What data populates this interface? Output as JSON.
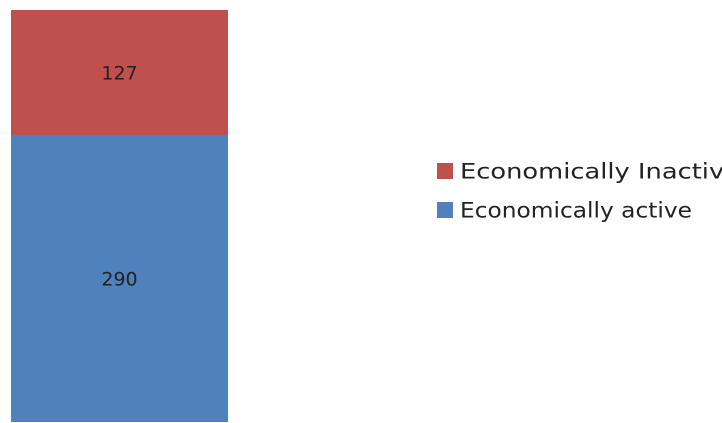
{
  "chart_data": {
    "type": "bar",
    "stacked": true,
    "categories": [
      ""
    ],
    "series": [
      {
        "name": "Economically active",
        "values": [
          290
        ],
        "color": "#4F81BD"
      },
      {
        "name": "Economically Inactive",
        "values": [
          127
        ],
        "color": "#C0504D"
      }
    ],
    "ylim": [
      0,
      417
    ],
    "grid": false,
    "legend_position": "right",
    "legend_order": [
      "Economically Inactive",
      "Economically active"
    ],
    "data_labels": true
  }
}
